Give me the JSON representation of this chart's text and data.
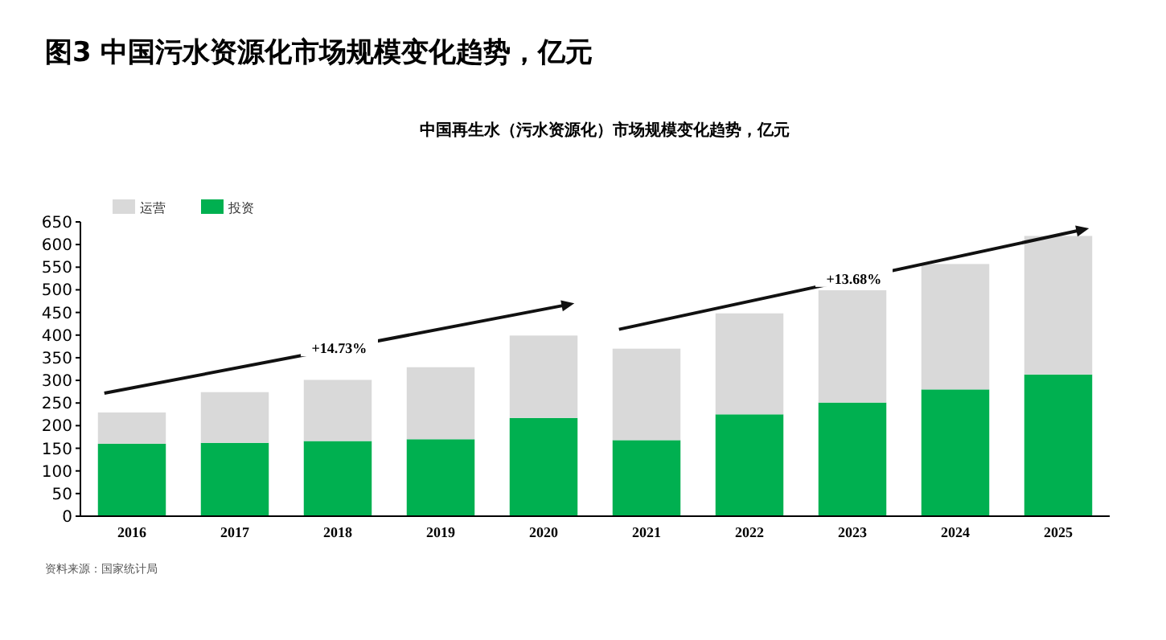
{
  "chart_data": {
    "type": "bar",
    "stacked": true,
    "title": "图3 中国污水资源化市场规模变化趋势，亿元",
    "subtitle": "中国再生水（污水资源化）市场规模变化趋势，亿元",
    "categories": [
      "2016",
      "2017",
      "2018",
      "2019",
      "2020",
      "2021",
      "2022",
      "2023",
      "2024",
      "2025"
    ],
    "series": [
      {
        "name": "投资",
        "color": "#00b050",
        "values": [
          160,
          162,
          166,
          170,
          217,
          168,
          225,
          251,
          280,
          313
        ]
      },
      {
        "name": "运营",
        "color": "#d9d9d9",
        "values": [
          69,
          112,
          135,
          159,
          182,
          202,
          223,
          248,
          277,
          306
        ]
      }
    ],
    "ylim": [
      0,
      650
    ],
    "yticks": [
      0,
      50,
      100,
      150,
      200,
      250,
      300,
      350,
      400,
      450,
      500,
      550,
      600,
      650
    ],
    "grid": false,
    "legend": "top left",
    "annotations": [
      "+14.73%",
      "+13.68%",
      "资料来源：国家统计局"
    ]
  }
}
